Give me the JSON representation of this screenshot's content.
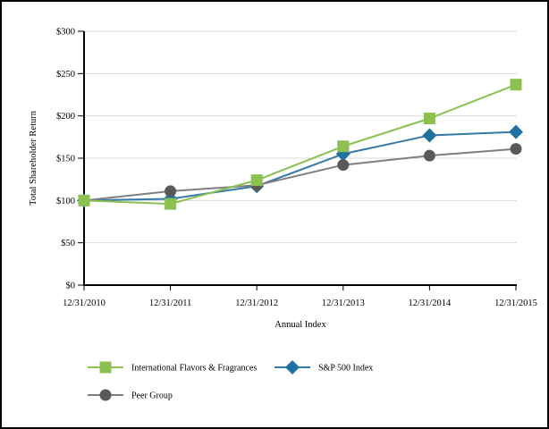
{
  "window": {
    "background": "#FFFFFF",
    "frame_border_color": "#000000"
  },
  "chart_data": {
    "type": "line",
    "title": "",
    "xlabel": "Annual Index",
    "ylabel": "Total Shareholder Return",
    "x_categories": [
      "12/31/2010",
      "12/31/2011",
      "12/31/2012",
      "12/31/2013",
      "12/31/2014",
      "12/31/2015"
    ],
    "y_tick_values": [
      0,
      50,
      100,
      150,
      200,
      250,
      300
    ],
    "y_tick_labels": [
      "$0",
      "$50",
      "$100",
      "$150",
      "$200",
      "$250",
      "$300"
    ],
    "ylim": [
      0,
      300
    ],
    "grid": "horizontal",
    "colors": {
      "gridline": "#D9D9D9",
      "axis": "#000000",
      "text": "#000000"
    },
    "series": [
      {
        "id": "iff",
        "name": "International Flavors & Fragrances",
        "marker": "square",
        "color": "#8CC152",
        "line_color": "#8CC152",
        "values": [
          100,
          96,
          124,
          164,
          197,
          237
        ]
      },
      {
        "id": "sp500",
        "name": "S&P 500 Index",
        "marker": "diamond",
        "color": "#2171A0",
        "line_color": "#3579A8",
        "values": [
          100,
          102,
          117,
          155,
          177,
          181
        ]
      },
      {
        "id": "peer",
        "name": "Peer Group",
        "marker": "circle",
        "color": "#595959",
        "line_color": "#7F7F7F",
        "values": [
          100,
          111,
          118,
          142,
          153,
          161
        ]
      }
    ],
    "legend": {
      "position": "bottom-left",
      "rows": [
        [
          "International Flavors & Fragrances",
          "S&P 500 Index"
        ],
        [
          "Peer Group"
        ]
      ]
    }
  }
}
